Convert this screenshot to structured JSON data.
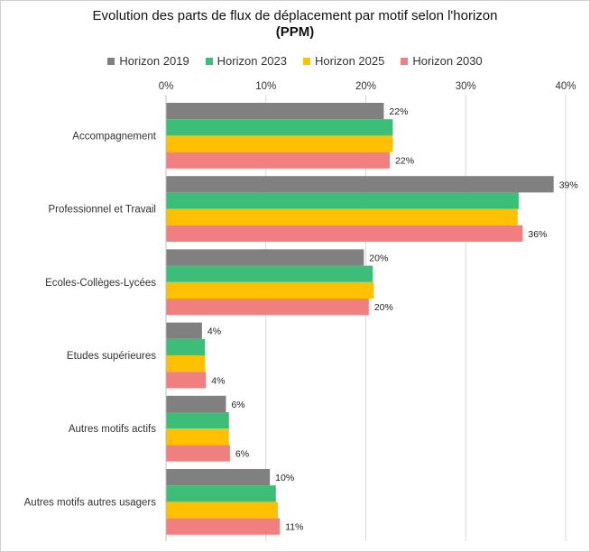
{
  "chart_data": {
    "type": "bar",
    "orientation": "horizontal",
    "title": "Evolution des parts de flux de déplacement par motif selon l'horizon",
    "subtitle": "(PPM)",
    "categories": [
      "Accompagnement",
      "Professionnel et Travail",
      "Ecoles-Collèges-Lycées",
      "Etudes supérieures",
      "Autres motifs actifs",
      "Autres motifs autres usagers"
    ],
    "series": [
      {
        "name": "Horizon 2019",
        "color": "#808080",
        "values": [
          21.8,
          38.8,
          19.8,
          3.6,
          6.0,
          10.4
        ]
      },
      {
        "name": "Horizon 2023",
        "color": "#3CBE78",
        "values": [
          22.7,
          35.3,
          20.7,
          3.9,
          6.3,
          11.0
        ]
      },
      {
        "name": "Horizon 2025",
        "color": "#FFC000",
        "values": [
          22.7,
          35.2,
          20.8,
          3.9,
          6.3,
          11.2
        ]
      },
      {
        "name": "Horizon 2030",
        "color": "#F08080",
        "values": [
          22.4,
          35.7,
          20.3,
          4.0,
          6.4,
          11.4
        ]
      }
    ],
    "data_labels": [
      [
        "22%",
        "",
        "",
        "22%"
      ],
      [
        "39%",
        "",
        "",
        "36%"
      ],
      [
        "20%",
        "",
        "",
        "20%"
      ],
      [
        "4%",
        "",
        "",
        "4%"
      ],
      [
        "6%",
        "",
        "",
        "6%"
      ],
      [
        "10%",
        "",
        "",
        "11%"
      ]
    ],
    "xlim": [
      0,
      40
    ],
    "xticks": [
      0,
      10,
      20,
      30,
      40
    ],
    "xtick_labels": [
      "0%",
      "10%",
      "20%",
      "30%",
      "40%"
    ],
    "axis_position": "top",
    "grid": true,
    "legend_position": "top"
  }
}
